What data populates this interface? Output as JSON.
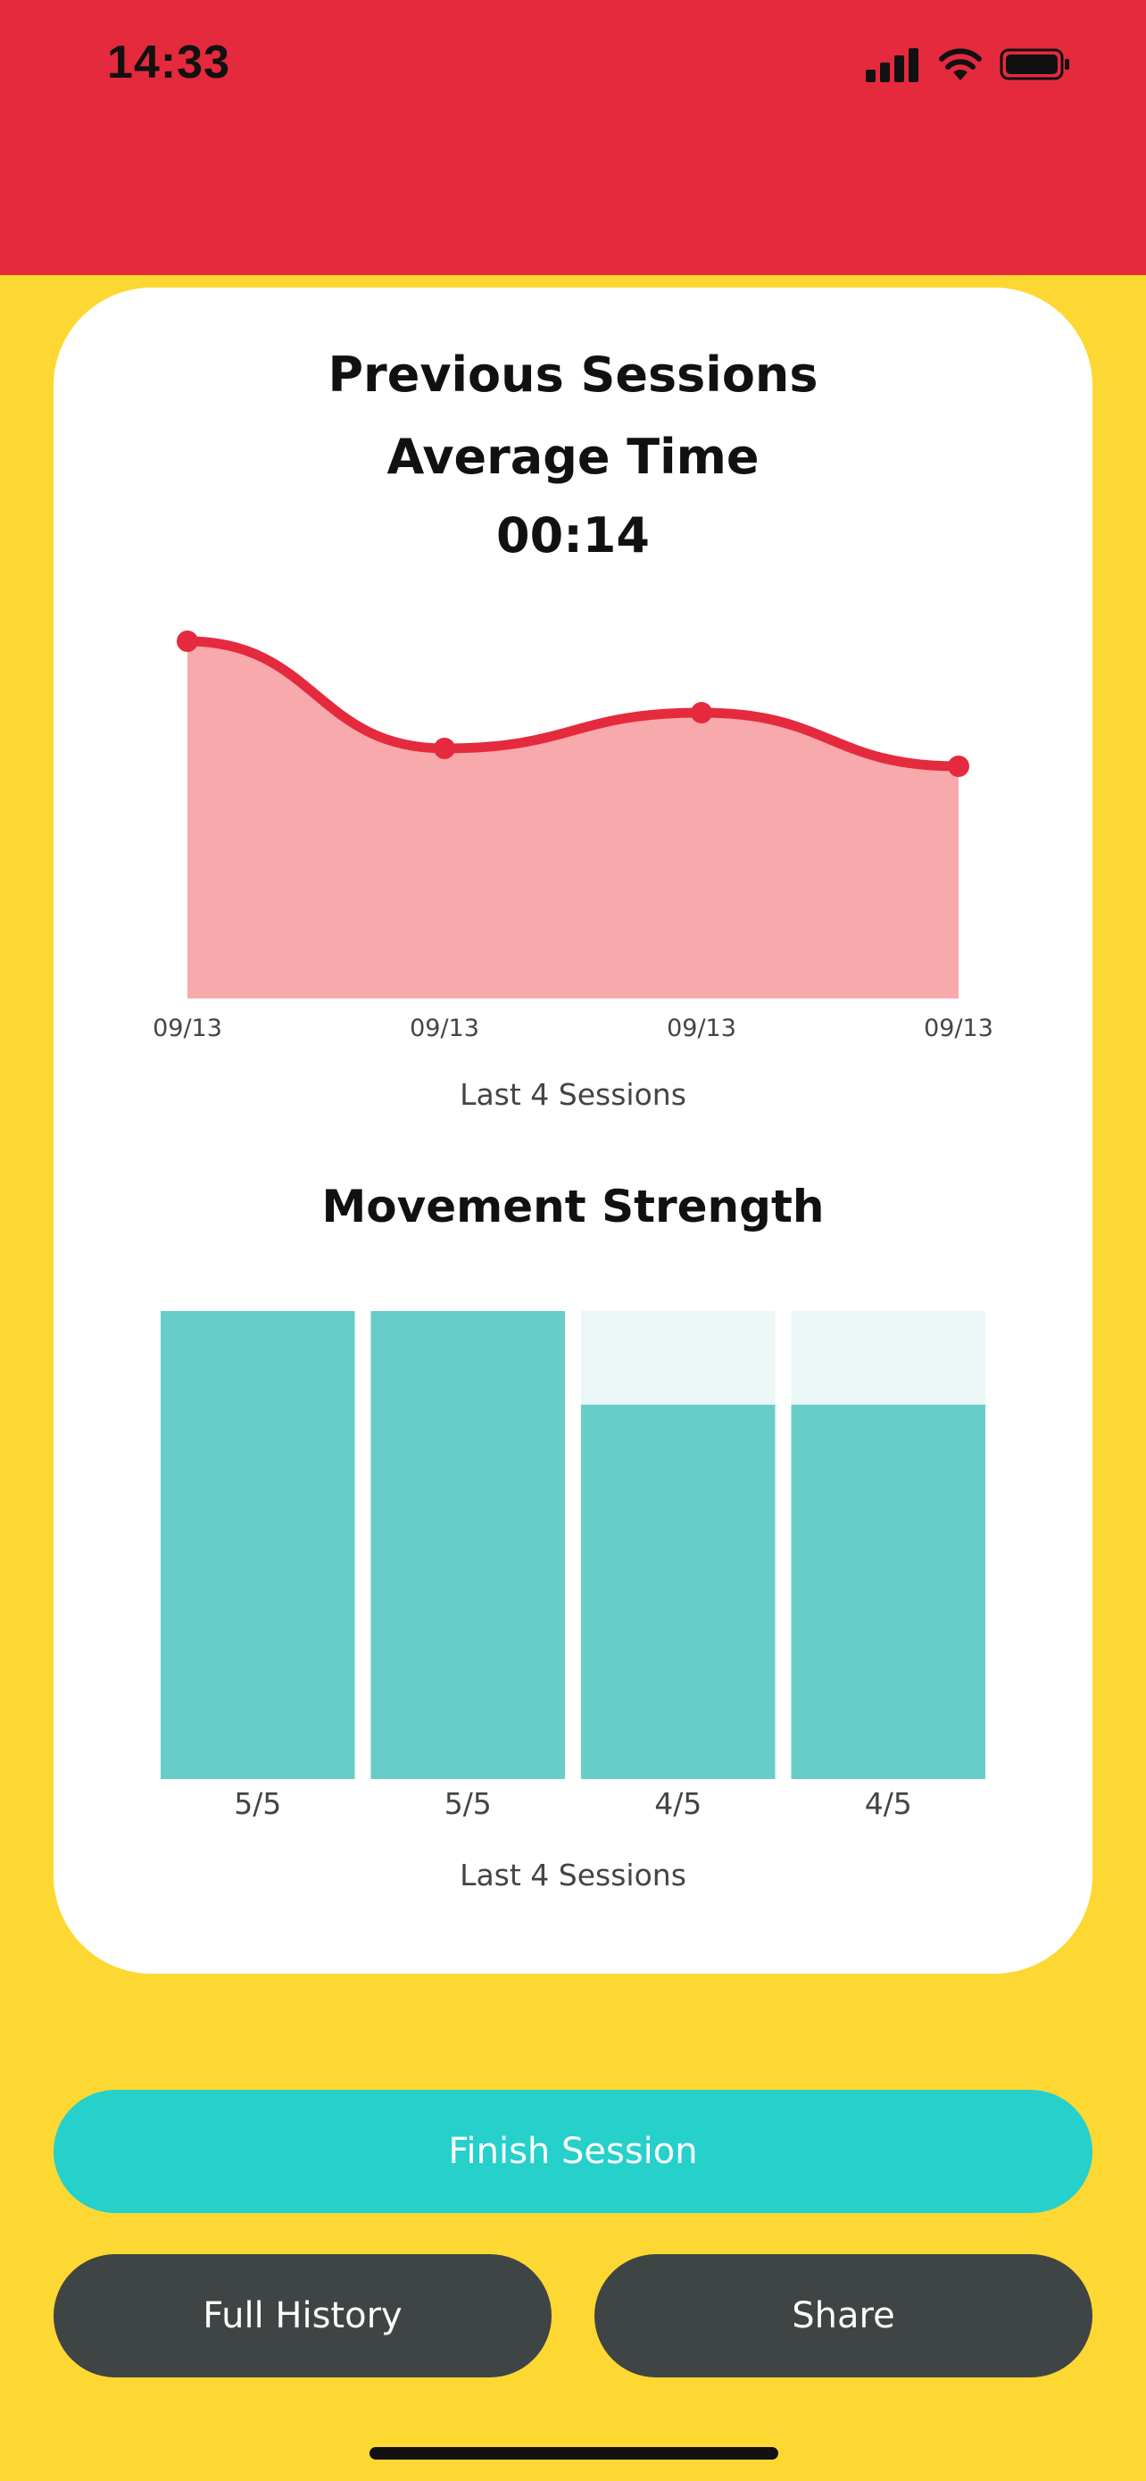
{
  "status_bar": {
    "time": "14:33"
  },
  "colors": {
    "header_red": "#E52A3E",
    "background_yellow": "#FED832",
    "line_red": "#E52A3E",
    "area_fill": "#F7A9AB",
    "bar_teal": "#66CDC8",
    "bar_track": "#EAF7F6",
    "primary_button": "#26D0CB",
    "secondary_button": "#3F4444"
  },
  "summary": {
    "title_line1": "Previous Sessions",
    "title_line2": "Average Time",
    "average_value": "00:14"
  },
  "movement": {
    "title": "Movement Strength"
  },
  "buttons": {
    "finish": "Finish Session",
    "history": "Full History",
    "share": "Share"
  },
  "chart_data": [
    {
      "type": "area",
      "title": "",
      "x": [
        "09/13",
        "09/13",
        "09/13",
        "09/13"
      ],
      "series": [
        {
          "values": [
            20,
            14,
            16,
            13
          ]
        }
      ],
      "ylim": [
        0,
        20
      ],
      "xlabel": "Last 4 Sessions",
      "grid": false
    },
    {
      "type": "bar",
      "title": "Movement Strength",
      "categories": [
        "5/5",
        "5/5",
        "4/5",
        "4/5"
      ],
      "values": [
        5,
        5,
        4,
        4
      ],
      "ylim": [
        0,
        5
      ],
      "xlabel": "Last 4 Sessions",
      "grid": false
    }
  ]
}
